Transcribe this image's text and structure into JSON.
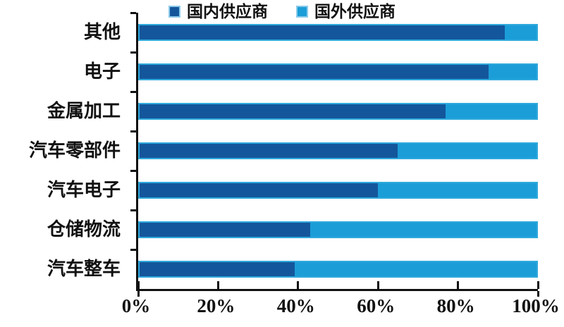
{
  "legend": {
    "items": [
      {
        "id": "domestic",
        "label": "国内供应商",
        "color": "#14569B"
      },
      {
        "id": "foreign",
        "label": "国外供应商",
        "color": "#1B9DD8"
      }
    ]
  },
  "chart_data": {
    "type": "bar",
    "orientation": "horizontal",
    "stacked": true,
    "unit": "%",
    "categories": [
      "其他",
      "电子",
      "金属加工",
      "汽车零部件",
      "汽车电子",
      "仓储物流",
      "汽车整车"
    ],
    "series": [
      {
        "name": "国内供应商",
        "color": "#14569B",
        "values": [
          92,
          88,
          77,
          65,
          60,
          43,
          39
        ]
      },
      {
        "name": "国外供应商",
        "color": "#1B9DD8",
        "values": [
          8,
          12,
          23,
          35,
          40,
          57,
          61
        ]
      }
    ],
    "title": "",
    "xlabel": "",
    "ylabel": "",
    "xlim": [
      0,
      100
    ],
    "x_ticks": [
      "0%",
      "20%",
      "40%",
      "60%",
      "80%",
      "100%"
    ],
    "legend_position": "top",
    "grid": false,
    "bar_border_color": "#2FA9DC",
    "axis_color": "#111111"
  }
}
